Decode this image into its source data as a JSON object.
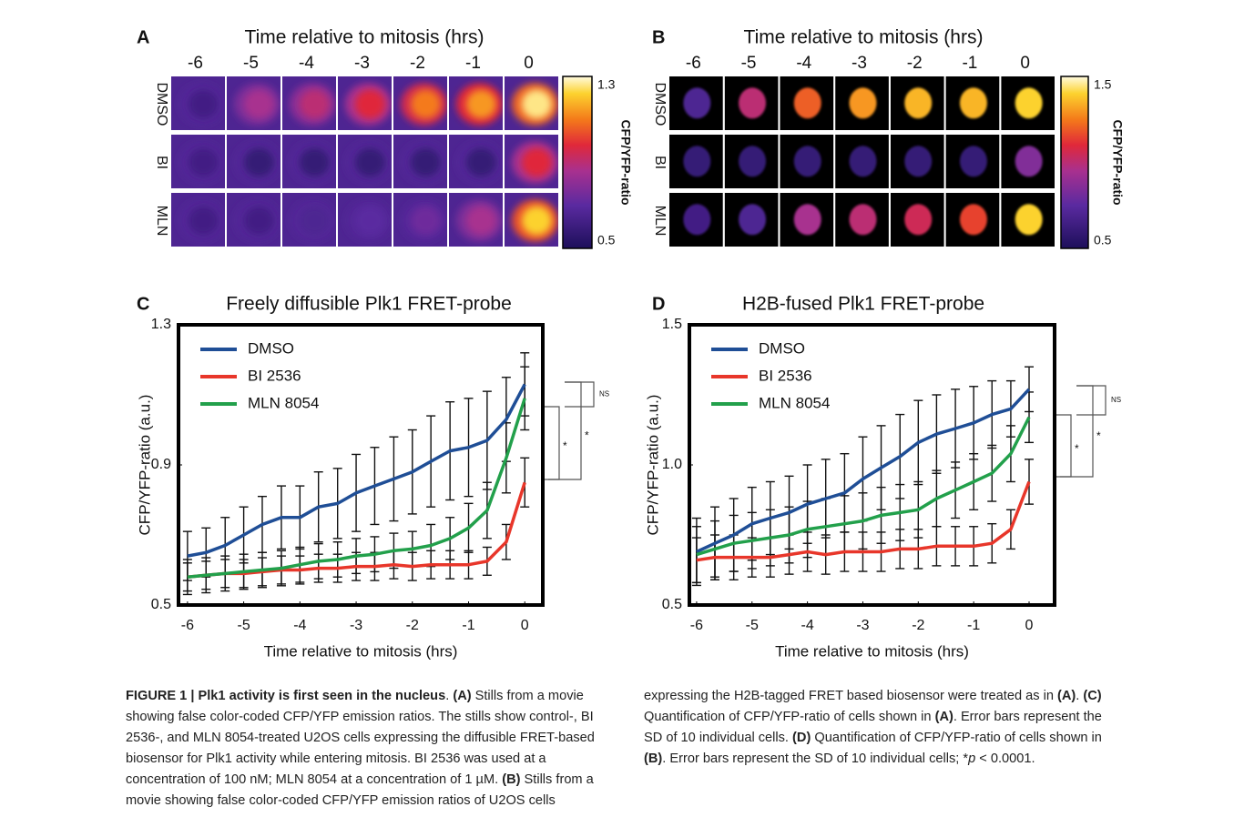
{
  "panels": [
    {
      "label": "A",
      "title": "Time relative to mitosis (hrs)",
      "columns": [
        "-6",
        "-5",
        "-4",
        "-3",
        "-2",
        "-1",
        "0"
      ],
      "rows": [
        "DMSO",
        "BI",
        "MLN"
      ],
      "colorbar": {
        "max": 1.3,
        "min": 0.5,
        "label": "CFP/YFP-ratio"
      }
    },
    {
      "label": "B",
      "title": "Time relative to mitosis (hrs)",
      "columns": [
        "-6",
        "-5",
        "-4",
        "-3",
        "-2",
        "-1",
        "0"
      ],
      "rows": [
        "DMSO",
        "BI",
        "MLN"
      ],
      "colorbar": {
        "max": 1.5,
        "min": 0.5,
        "label": "CFP/YFP-ratio"
      }
    }
  ],
  "chart_data": [
    {
      "type": "line",
      "panel_label": "C",
      "title": "Freely diffusible Plk1 FRET-probe",
      "xlabel": "Time relative to mitosis (hrs)",
      "ylabel": "CFP/YFP-ratio (a.u.)",
      "x": [
        -6,
        -5.67,
        -5.33,
        -5,
        -4.67,
        -4.33,
        -4,
        -3.67,
        -3.33,
        -3,
        -2.67,
        -2.33,
        -2,
        -1.67,
        -1.33,
        -1,
        -0.67,
        -0.33,
        0
      ],
      "series": [
        {
          "name": "DMSO",
          "color": "#1f4e96",
          "values": [
            0.64,
            0.65,
            0.67,
            0.7,
            0.73,
            0.75,
            0.75,
            0.78,
            0.79,
            0.82,
            0.84,
            0.86,
            0.88,
            0.91,
            0.94,
            0.95,
            0.97,
            1.03,
            1.13
          ],
          "errors": [
            0.07,
            0.07,
            0.08,
            0.08,
            0.08,
            0.09,
            0.09,
            0.1,
            0.1,
            0.11,
            0.11,
            0.12,
            0.12,
            0.13,
            0.14,
            0.14,
            0.14,
            0.12,
            0.09
          ]
        },
        {
          "name": "BI 2536",
          "color": "#e8362a",
          "values": [
            0.58,
            0.585,
            0.59,
            0.59,
            0.595,
            0.6,
            0.6,
            0.605,
            0.605,
            0.61,
            0.61,
            0.615,
            0.61,
            0.615,
            0.615,
            0.615,
            0.625,
            0.68,
            0.85
          ],
          "errors": [
            0.04,
            0.04,
            0.04,
            0.04,
            0.04,
            0.04,
            0.04,
            0.04,
            0.04,
            0.04,
            0.04,
            0.04,
            0.04,
            0.04,
            0.04,
            0.04,
            0.04,
            0.05,
            0.07
          ]
        },
        {
          "name": "MLN 8054",
          "color": "#22a04b",
          "values": [
            0.58,
            0.585,
            0.59,
            0.595,
            0.6,
            0.605,
            0.615,
            0.625,
            0.63,
            0.64,
            0.645,
            0.655,
            0.66,
            0.67,
            0.69,
            0.72,
            0.77,
            0.92,
            1.09
          ],
          "errors": [
            0.05,
            0.05,
            0.05,
            0.05,
            0.05,
            0.05,
            0.05,
            0.05,
            0.05,
            0.05,
            0.05,
            0.05,
            0.05,
            0.06,
            0.06,
            0.07,
            0.08,
            0.1,
            0.09
          ]
        }
      ],
      "xlim": [
        -6.16,
        0.32
      ],
      "ylim": [
        0.5,
        1.3
      ],
      "xticks": [
        -6,
        -5,
        -4,
        -3,
        -2,
        -1,
        0
      ],
      "yticks": [
        0.5,
        0.9,
        1.3
      ],
      "legend": "upper left",
      "grid": false,
      "annotations": [
        "NS",
        "*",
        "*"
      ]
    },
    {
      "type": "line",
      "panel_label": "D",
      "title": "H2B-fused Plk1 FRET-probe",
      "xlabel": "Time relative to mitosis (hrs)",
      "ylabel": "CFP/YFP-ratio (a.u.)",
      "x": [
        -6,
        -5.67,
        -5.33,
        -5,
        -4.67,
        -4.33,
        -4,
        -3.67,
        -3.33,
        -3,
        -2.67,
        -2.33,
        -2,
        -1.67,
        -1.33,
        -1,
        -0.67,
        -0.33,
        0
      ],
      "series": [
        {
          "name": "DMSO",
          "color": "#1f4e96",
          "values": [
            0.69,
            0.72,
            0.75,
            0.79,
            0.81,
            0.83,
            0.86,
            0.88,
            0.9,
            0.95,
            0.99,
            1.03,
            1.08,
            1.11,
            1.13,
            1.15,
            1.18,
            1.2,
            1.27
          ],
          "errors": [
            0.12,
            0.13,
            0.13,
            0.13,
            0.13,
            0.13,
            0.14,
            0.14,
            0.14,
            0.15,
            0.15,
            0.15,
            0.15,
            0.14,
            0.14,
            0.13,
            0.12,
            0.1,
            0.08
          ]
        },
        {
          "name": "BI 2536",
          "color": "#e8362a",
          "values": [
            0.66,
            0.67,
            0.67,
            0.67,
            0.67,
            0.68,
            0.69,
            0.68,
            0.69,
            0.69,
            0.69,
            0.7,
            0.7,
            0.71,
            0.71,
            0.71,
            0.72,
            0.77,
            0.94
          ],
          "errors": [
            0.08,
            0.08,
            0.08,
            0.07,
            0.07,
            0.07,
            0.07,
            0.07,
            0.07,
            0.07,
            0.07,
            0.07,
            0.07,
            0.07,
            0.07,
            0.07,
            0.07,
            0.07,
            0.08
          ]
        },
        {
          "name": "MLN 8054",
          "color": "#22a04b",
          "values": [
            0.68,
            0.7,
            0.72,
            0.73,
            0.74,
            0.75,
            0.77,
            0.78,
            0.79,
            0.8,
            0.82,
            0.83,
            0.84,
            0.88,
            0.91,
            0.94,
            0.97,
            1.04,
            1.17
          ],
          "errors": [
            0.1,
            0.1,
            0.1,
            0.1,
            0.1,
            0.1,
            0.1,
            0.1,
            0.1,
            0.1,
            0.1,
            0.1,
            0.1,
            0.1,
            0.1,
            0.1,
            0.1,
            0.1,
            0.09
          ]
        }
      ],
      "xlim": [
        -6.13,
        0.46
      ],
      "ylim": [
        0.5,
        1.5
      ],
      "xticks": [
        -6,
        -5,
        -4,
        -3,
        -2,
        -1,
        0
      ],
      "yticks": [
        0.5,
        {
          "value": 1,
          "label": "1.0"
        },
        1.5
      ],
      "legend": "upper left",
      "grid": false,
      "annotations": [
        "NS",
        "*",
        "*"
      ]
    }
  ],
  "caption": [
    {
      "text": "FIGURE 1 | Plk1 activity is first seen in the nucleus",
      "style": "bold"
    },
    {
      "text": ". ",
      "style": "normal"
    },
    {
      "text": "(A)",
      "style": "bold"
    },
    {
      "text": " Stills from a movie showing false color-coded CFP/YFP emission ratios. The stills show control-, BI 2536-, and MLN 8054-treated U2OS cells expressing the diffusible FRET-based biosensor for Plk1 activity while entering mitosis. BI 2536 was used at a concentration of 100 nM; MLN 8054 at a concentration of 1 µM. ",
      "style": "normal"
    },
    {
      "text": "(B)",
      "style": "bold"
    },
    {
      "text": " Stills from a movie showing false color-coded CFP/YFP emission ratios of U2OS cells expressing the H2B-tagged FRET based biosensor were treated as in ",
      "style": "normal"
    },
    {
      "text": "(A)",
      "style": "bold"
    },
    {
      "text": ". ",
      "style": "normal"
    },
    {
      "text": "(C)",
      "style": "bold"
    },
    {
      "text": " Quantification of CFP/YFP-ratio of cells shown in ",
      "style": "normal"
    },
    {
      "text": "(A)",
      "style": "bold"
    },
    {
      "text": ". Error bars represent the SD of 10 individual cells. ",
      "style": "normal"
    },
    {
      "text": "(D)",
      "style": "bold"
    },
    {
      "text": " Quantification of CFP/YFP-ratio of cells shown in ",
      "style": "normal"
    },
    {
      "text": "(B)",
      "style": "bold"
    },
    {
      "text": ". Error bars represent the SD of 10 individual cells; *",
      "style": "normal"
    },
    {
      "text": "p",
      "style": "italic"
    },
    {
      "text": " < 0.0001.",
      "style": "normal"
    }
  ]
}
